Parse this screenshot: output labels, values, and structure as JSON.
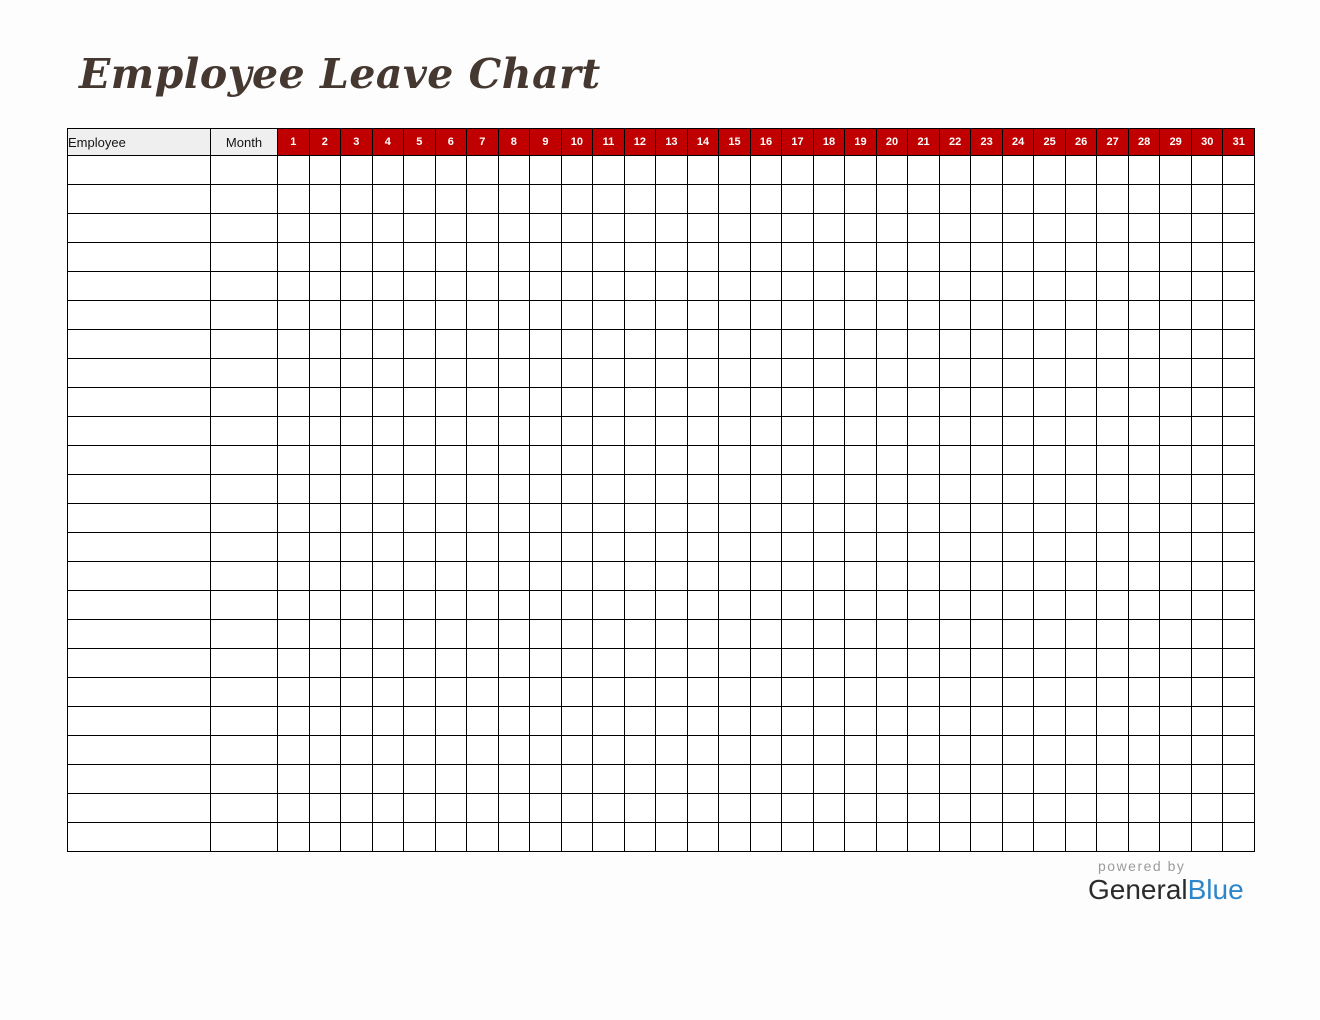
{
  "page": {
    "title": "Employee Leave Chart",
    "background_color": "#fdfdfd",
    "title_color": "#453831"
  },
  "table": {
    "header": {
      "employee_label": "Employee",
      "month_label": "Month",
      "days": [
        "1",
        "2",
        "3",
        "4",
        "5",
        "6",
        "7",
        "8",
        "9",
        "10",
        "11",
        "12",
        "13",
        "14",
        "15",
        "16",
        "17",
        "18",
        "19",
        "20",
        "21",
        "22",
        "23",
        "24",
        "25",
        "26",
        "27",
        "28",
        "29",
        "30",
        "31"
      ],
      "label_bg_color": "#efefef",
      "day_bg_color": "#c00000",
      "day_text_color": "#ffffff"
    },
    "body_row_count": 24,
    "border_color": "#000000"
  },
  "branding": {
    "powered_by": "powered by",
    "brand_first": "General",
    "brand_second": "Blue",
    "powered_by_color": "#9b9b9b",
    "brand_first_color": "#2b2b2b",
    "brand_second_color": "#2e86c8"
  }
}
